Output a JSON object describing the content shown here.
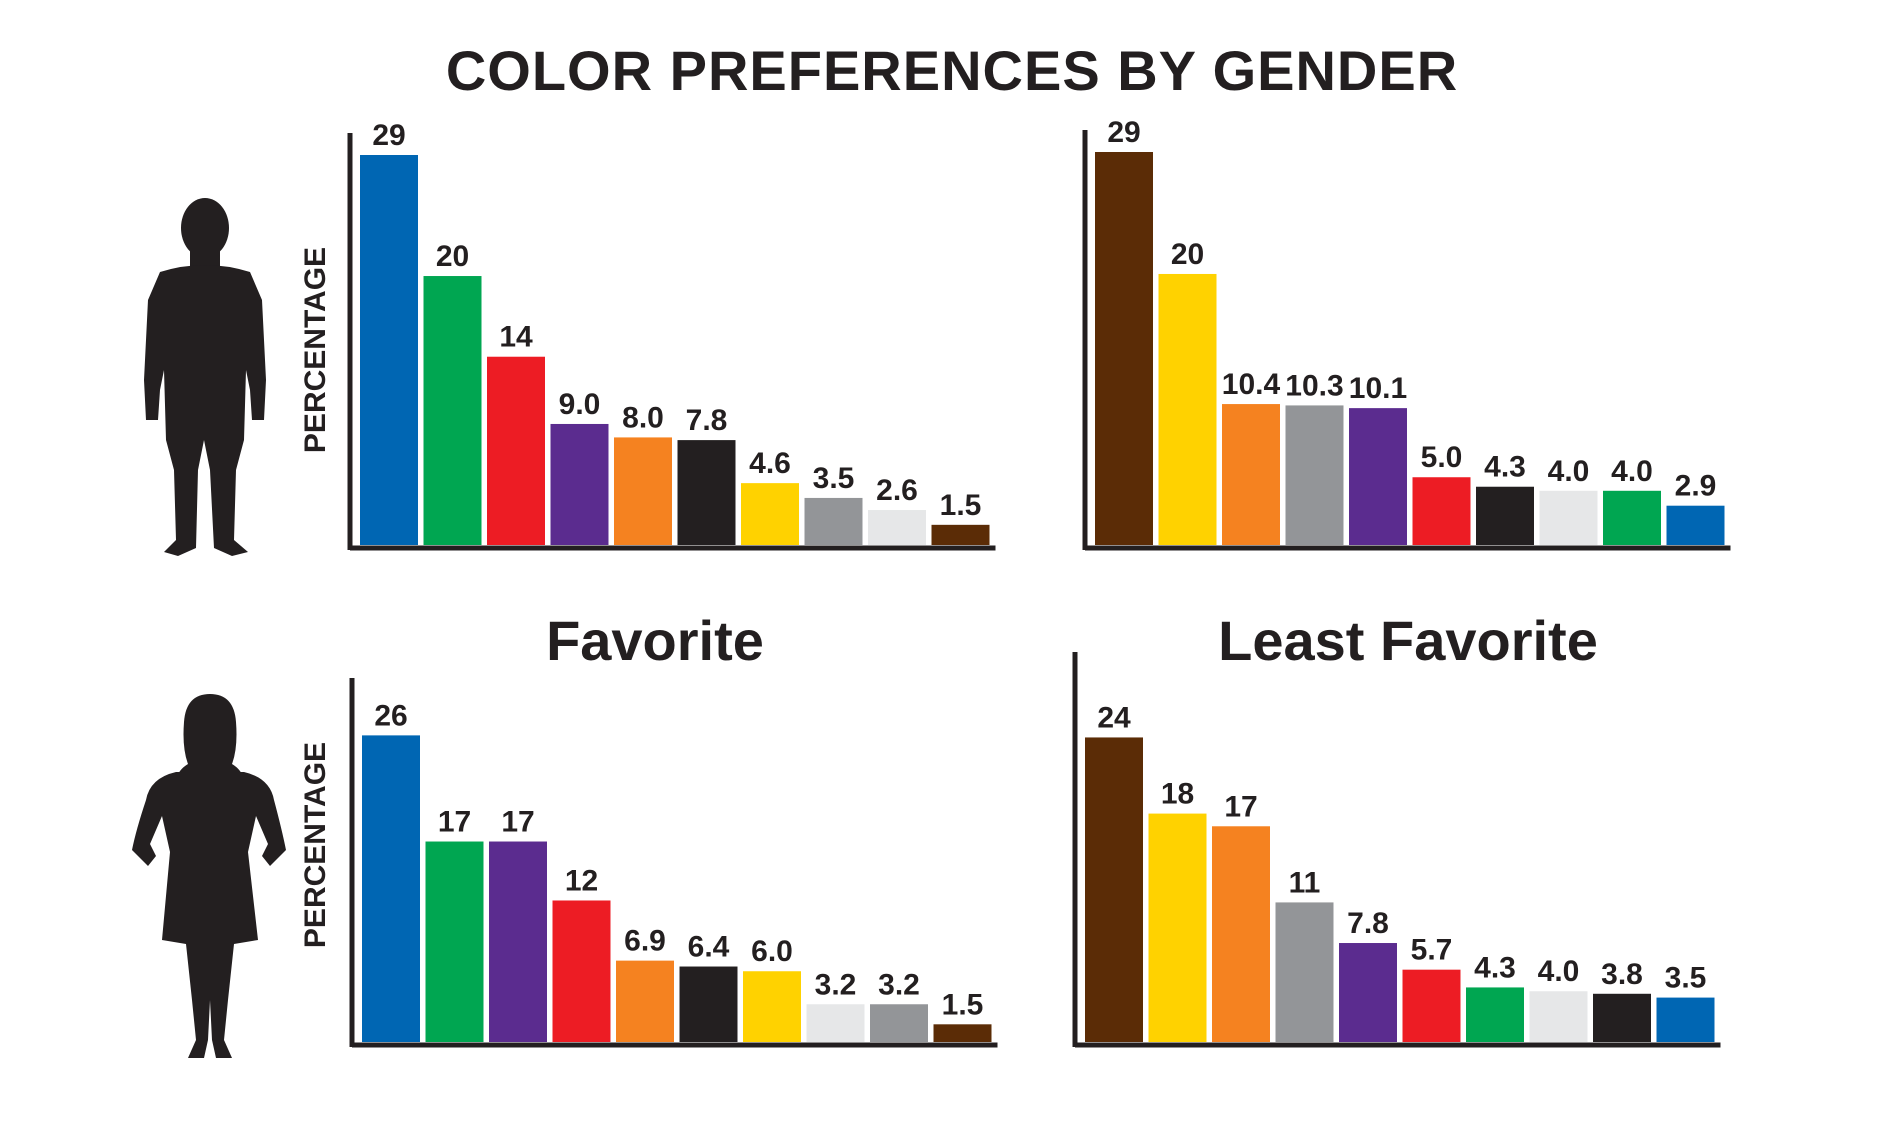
{
  "title": "COLOR PREFERENCES BY GENDER",
  "section_titles": {
    "favorite": "Favorite",
    "least_favorite": "Least Favorite"
  },
  "ylabel": "PERCENTAGE",
  "icons": {
    "male": "male-silhouette-icon",
    "female": "female-silhouette-icon"
  },
  "chart_data": [
    {
      "type": "bar",
      "panel": "male-favorite",
      "ylabel": "PERCENTAGE",
      "values": [
        29,
        20,
        14,
        9.0,
        8.0,
        7.8,
        4.6,
        3.5,
        2.6,
        1.5
      ],
      "labels": [
        "29",
        "20",
        "14",
        "9.0",
        "8.0",
        "7.8",
        "4.6",
        "3.5",
        "2.6",
        "1.5"
      ],
      "colors": [
        "#0066b3",
        "#00a651",
        "#ed1c24",
        "#5b2c8f",
        "#f58220",
        "#231f20",
        "#ffd200",
        "#939598",
        "#e6e7e8",
        "#5b2c06"
      ]
    },
    {
      "type": "bar",
      "panel": "male-least-favorite",
      "ylabel": "",
      "values": [
        29,
        20,
        10.4,
        10.3,
        10.1,
        5.0,
        4.3,
        4.0,
        4.0,
        2.9
      ],
      "labels": [
        "29",
        "20",
        "10.4",
        "10.3",
        "10.1",
        "5.0",
        "4.3",
        "4.0",
        "4.0",
        "2.9"
      ],
      "colors": [
        "#5b2c06",
        "#ffd200",
        "#f58220",
        "#939598",
        "#5b2c8f",
        "#ed1c24",
        "#231f20",
        "#e6e7e8",
        "#00a651",
        "#0066b3"
      ]
    },
    {
      "type": "bar",
      "panel": "female-favorite",
      "ylabel": "PERCENTAGE",
      "values": [
        26,
        17,
        17,
        12,
        6.9,
        6.4,
        6.0,
        3.2,
        3.2,
        1.5
      ],
      "labels": [
        "26",
        "17",
        "17",
        "12",
        "6.9",
        "6.4",
        "6.0",
        "3.2",
        "3.2",
        "1.5"
      ],
      "colors": [
        "#0066b3",
        "#00a651",
        "#5b2c8f",
        "#ed1c24",
        "#f58220",
        "#231f20",
        "#ffd200",
        "#e6e7e8",
        "#939598",
        "#5b2c06"
      ]
    },
    {
      "type": "bar",
      "panel": "female-least-favorite",
      "ylabel": "",
      "values": [
        24,
        18,
        17,
        11,
        7.8,
        5.7,
        4.3,
        4.0,
        3.8,
        3.5
      ],
      "labels": [
        "24",
        "18",
        "17",
        "11",
        "7.8",
        "5.7",
        "4.3",
        "4.0",
        "3.8",
        "3.5"
      ],
      "colors": [
        "#5b2c06",
        "#ffd200",
        "#f58220",
        "#939598",
        "#5b2c8f",
        "#ed1c24",
        "#00a651",
        "#e6e7e8",
        "#231f20",
        "#0066b3"
      ]
    }
  ]
}
